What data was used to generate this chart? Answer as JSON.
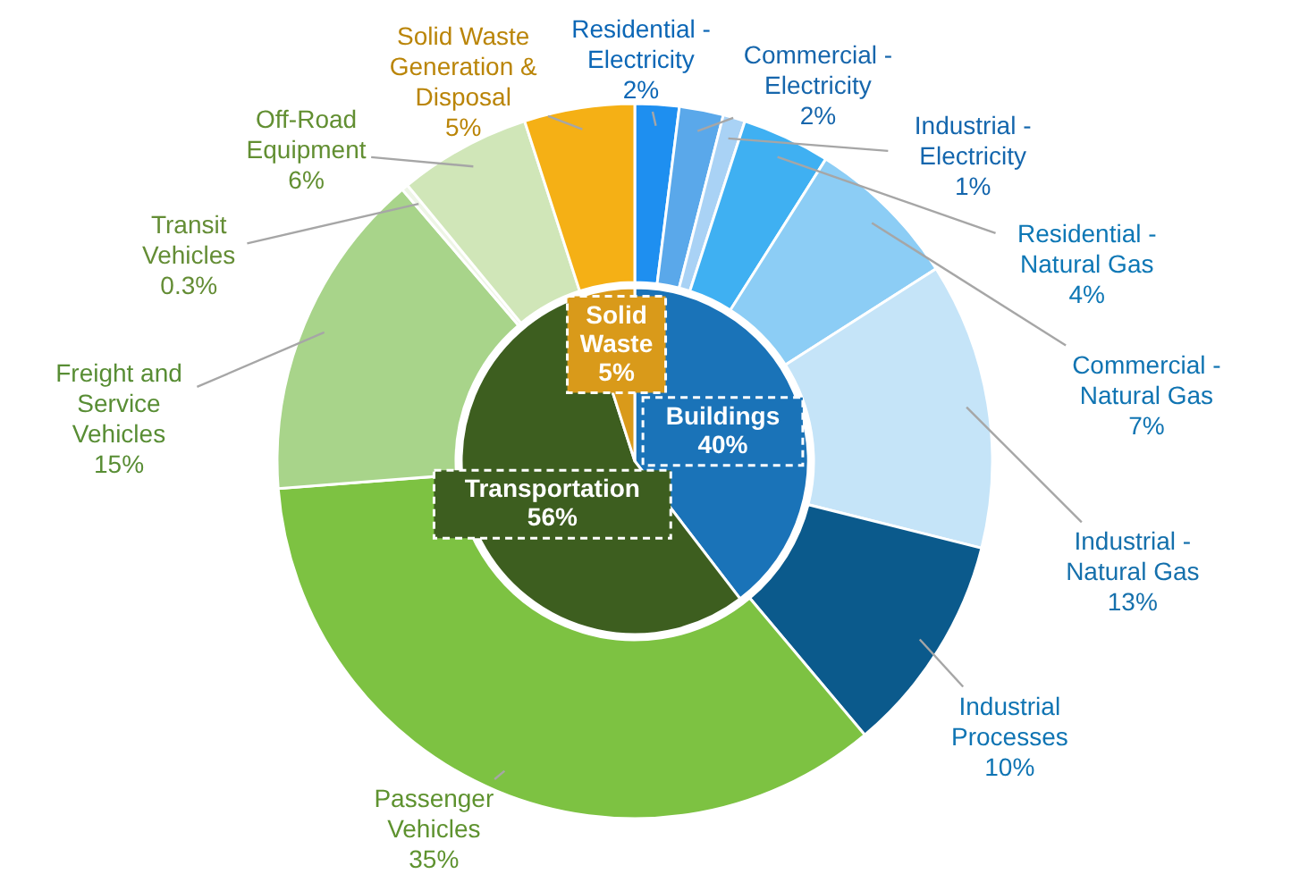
{
  "chart_data": [
    {
      "type": "donut",
      "categories": [
        "Residential - Electricity",
        "Commercial - Electricity",
        "Industrial - Electricity",
        "Residential - Natural Gas",
        "Commercial - Natural Gas",
        "Industrial - Natural Gas",
        "Industrial Processes",
        "Passenger Vehicles",
        "Freight and Service Vehicles",
        "Transit Vehicles",
        "Off-Road Equipment",
        "Solid Waste Generation & Disposal"
      ],
      "values": [
        2,
        2,
        1,
        4,
        7,
        13,
        10,
        35,
        15,
        0.3,
        6,
        5
      ],
      "value_labels": [
        "2%",
        "2%",
        "1%",
        "4%",
        "7%",
        "13%",
        "10%",
        "35%",
        "15%",
        "0.3%",
        "6%",
        "5%"
      ],
      "colors": [
        "#1e8ff0",
        "#5aa8ea",
        "#a9d2f5",
        "#3fb0f2",
        "#8ccdf5",
        "#c5e4f8",
        "#0b5a8c",
        "#7dc242",
        "#a8d48a",
        "#eef5e6",
        "#d0e6b8",
        "#f5b015"
      ]
    },
    {
      "type": "pie",
      "categories": [
        "Buildings",
        "Transportation",
        "Solid Waste"
      ],
      "values": [
        40,
        56,
        5
      ],
      "value_labels": [
        "40%",
        "56%",
        "5%"
      ],
      "colors": [
        "#1a73b8",
        "#3d5e1f",
        "#d99a1a"
      ]
    }
  ]
}
